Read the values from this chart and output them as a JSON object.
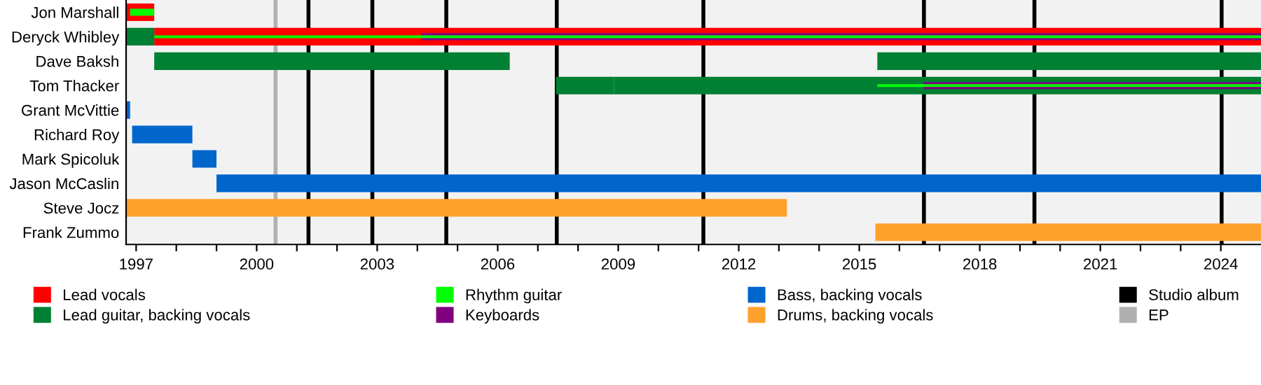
{
  "chart_data": {
    "type": "bar",
    "orientation": "horizontal",
    "categories": [
      "Jon Marshall",
      "Deryck Whibley",
      "Dave Baksh",
      "Tom Thacker",
      "Grant McVittie",
      "Richard Roy",
      "Mark Spicoluk",
      "Jason McCaslin",
      "Steve Jocz",
      "Frank Zummo"
    ],
    "series": [
      {
        "name": "Lead vocals",
        "color": "#ff0000",
        "base": [
          1996.75,
          1997.45,
          null,
          null,
          null,
          null,
          null,
          null,
          null,
          null
        ],
        "values": [
          0.7,
          27.55,
          null,
          null,
          null,
          null,
          null,
          null,
          null,
          null
        ]
      },
      {
        "name": "Lead guitar, backing vocals",
        "color": "#008033",
        "base": [
          null,
          1996.75,
          1997.45,
          2007.45,
          null,
          null,
          null,
          null,
          null,
          null
        ],
        "values": [
          null,
          0.7,
          8.85,
          1.45,
          null,
          null,
          null,
          null,
          null,
          null
        ]
      },
      {
        "color": "#008033",
        "base": [
          null,
          null,
          2015.45,
          2008.9,
          null,
          null,
          null,
          null,
          null,
          null
        ],
        "values": [
          null,
          null,
          9.55,
          16.1,
          null,
          null,
          null,
          null,
          null,
          null
        ]
      },
      {
        "name": "Bass, backing vocals",
        "color": "#0066cc",
        "base": [
          null,
          null,
          null,
          null,
          1996.75,
          1996.9,
          1998.4,
          1999.0,
          null,
          null
        ],
        "values": [
          null,
          null,
          null,
          null,
          0.1,
          1.5,
          0.6,
          26.0,
          null,
          null
        ]
      },
      {
        "name": "Drums, backing vocals",
        "color": "#ffa12d",
        "base": [
          null,
          null,
          null,
          null,
          null,
          null,
          null,
          null,
          1996.75,
          2015.4
        ],
        "values": [
          null,
          null,
          null,
          null,
          null,
          null,
          null,
          null,
          16.45,
          9.6
        ]
      },
      {
        "name": "Keyboards",
        "color": "#800080",
        "base": [
          null,
          2004.1,
          null,
          2016.6,
          null,
          null,
          null,
          null,
          null,
          null
        ],
        "values": [
          null,
          20.9,
          null,
          8.4,
          null,
          null,
          null,
          null,
          null,
          null
        ]
      },
      {
        "name": "Rhythm guitar",
        "color": "#00ff00",
        "base": [
          1996.85,
          1997.45,
          null,
          2015.45,
          null,
          null,
          null,
          null,
          null,
          null
        ],
        "values": [
          0.6,
          27.55,
          null,
          9.55,
          null,
          null,
          null,
          null,
          null,
          null
        ]
      }
    ],
    "xlim": [
      1996.75,
      2025.0
    ],
    "xticks": [
      1997,
      {
        "value": 1998,
        "label": null
      },
      {
        "value": 1999,
        "label": null
      },
      2000,
      {
        "value": 2001,
        "label": null
      },
      {
        "value": 2002,
        "label": null
      },
      2003,
      {
        "value": 2004,
        "label": null
      },
      {
        "value": 2005,
        "label": null
      },
      2006,
      {
        "value": 2007,
        "label": null
      },
      {
        "value": 2008,
        "label": null
      },
      2009,
      {
        "value": 2010,
        "label": null
      },
      {
        "value": 2011,
        "label": null
      },
      2012,
      {
        "value": 2013,
        "label": null
      },
      {
        "value": 2014,
        "label": null
      },
      2015,
      {
        "value": 2016,
        "label": null
      },
      {
        "value": 2017,
        "label": null
      },
      2018,
      {
        "value": 2019,
        "label": null
      },
      {
        "value": 2020,
        "label": null
      },
      2021,
      {
        "value": 2022,
        "label": null
      },
      {
        "value": 2023,
        "label": null
      },
      2024
    ],
    "ref_lines": [
      {
        "axis": "x",
        "value": 2001.29,
        "label": "Studio album",
        "color": "#000000"
      },
      {
        "axis": "x",
        "value": 2000.47,
        "label": "EP",
        "color": "#b0b0b0"
      },
      {
        "axis": "x",
        "value": 2002.88,
        "color": "#000000"
      },
      {
        "axis": "x",
        "value": 2004.72,
        "color": "#000000"
      },
      {
        "axis": "x",
        "value": 2007.47,
        "color": "#000000"
      },
      {
        "axis": "x",
        "value": 2011.12,
        "color": "#000000"
      },
      {
        "axis": "x",
        "value": 2016.61,
        "color": "#000000"
      },
      {
        "axis": "x",
        "value": 2019.36,
        "color": "#000000"
      },
      {
        "axis": "x",
        "value": 2024.02,
        "color": "#000000"
      }
    ],
    "grid": false,
    "legend": "bottom"
  }
}
